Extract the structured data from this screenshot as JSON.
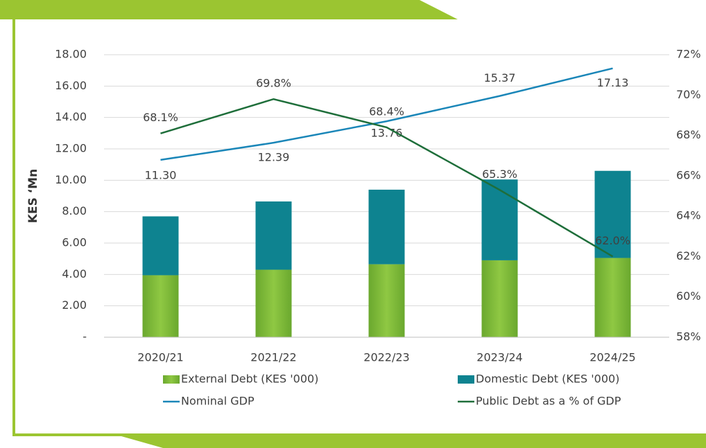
{
  "chart_data": {
    "type": "bar",
    "y_label": "KES ‘Mn",
    "categories": [
      "2020/21",
      "2021/22",
      "2022/23",
      "2023/24",
      "2024/25"
    ],
    "series": [
      {
        "name": "External Debt (KES '000)",
        "type": "bar",
        "color": "#7cb83a",
        "values": [
          3.95,
          4.3,
          4.65,
          4.9,
          5.05
        ]
      },
      {
        "name": "Domestic Debt (KES '000)",
        "type": "bar",
        "color": "#0e8390",
        "values": [
          3.75,
          4.35,
          4.75,
          5.15,
          5.55
        ]
      },
      {
        "name": "Nominal GDP",
        "type": "line",
        "color": "#1a86b8",
        "values": [
          11.3,
          12.39,
          13.76,
          15.37,
          17.13
        ],
        "value_labels": [
          "11.30",
          "12.39",
          "13.76",
          "15.37",
          "17.13"
        ]
      },
      {
        "name": "Public Debt as a % of GDP",
        "type": "line",
        "axis": "y2",
        "color": "#1e6e3a",
        "values": [
          68.1,
          69.8,
          68.4,
          65.3,
          62.0
        ],
        "value_labels": [
          "68.1%",
          "69.8%",
          "68.4%",
          "65.3%",
          "62.0%"
        ]
      }
    ],
    "ylim": [
      0,
      18
    ],
    "yticks": [
      {
        "value": 0,
        "label": "-"
      },
      {
        "value": 2,
        "label": "2.00"
      },
      {
        "value": 4,
        "label": "4.00"
      },
      {
        "value": 6,
        "label": "6.00"
      },
      {
        "value": 8,
        "label": "8.00"
      },
      {
        "value": 10,
        "label": "10.00"
      },
      {
        "value": 12,
        "label": "12.00"
      },
      {
        "value": 14,
        "label": "14.00"
      },
      {
        "value": 16,
        "label": "16.00"
      },
      {
        "value": 18,
        "label": "18.00"
      }
    ],
    "y2lim": [
      58,
      72
    ],
    "y2ticks": [
      {
        "value": 58,
        "label": "58%"
      },
      {
        "value": 60,
        "label": "60%"
      },
      {
        "value": 62,
        "label": "62%"
      },
      {
        "value": 64,
        "label": "64%"
      },
      {
        "value": 66,
        "label": "66%"
      },
      {
        "value": 68,
        "label": "68%"
      },
      {
        "value": 70,
        "label": "70%"
      },
      {
        "value": 72,
        "label": "72%"
      }
    ],
    "grid": true
  }
}
